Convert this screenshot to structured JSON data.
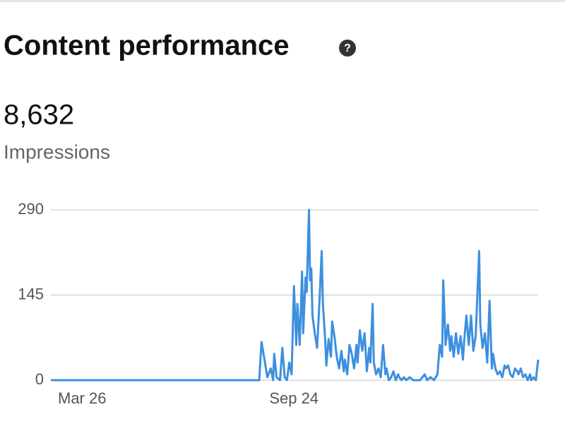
{
  "chart_data": {
    "type": "line",
    "title": "Content performance",
    "total": "8,632",
    "total_label": "Impressions",
    "x": [
      0,
      180,
      182,
      185,
      187,
      190,
      192,
      193,
      195,
      198,
      200,
      202,
      204,
      206,
      208,
      210,
      212,
      213,
      215,
      217,
      218,
      220,
      221,
      223,
      224,
      225,
      226,
      228,
      230,
      232,
      234,
      235,
      237,
      238,
      240,
      242,
      243,
      245,
      247,
      249,
      251,
      253,
      254,
      256,
      258,
      260,
      262,
      264,
      265,
      267,
      269,
      271,
      273,
      275,
      276,
      278,
      279,
      281,
      283,
      285,
      287,
      289,
      290,
      292,
      294,
      296,
      298,
      300,
      301,
      303,
      305,
      307,
      310,
      313,
      316,
      319,
      323,
      325,
      328,
      331,
      334,
      336,
      338,
      339,
      341,
      343,
      345,
      346,
      348,
      350,
      352,
      354,
      356,
      357,
      359,
      361,
      363,
      365,
      367,
      368,
      370,
      371,
      373,
      375,
      377,
      379,
      381,
      382,
      384,
      386,
      388,
      390,
      392,
      393,
      395,
      397,
      399,
      401,
      403,
      404,
      406,
      408,
      410,
      412,
      414,
      415,
      417,
      419,
      421
    ],
    "values": [
      0,
      0,
      65,
      30,
      5,
      20,
      0,
      45,
      5,
      0,
      55,
      5,
      0,
      30,
      10,
      160,
      60,
      130,
      60,
      185,
      80,
      175,
      150,
      290,
      170,
      190,
      110,
      80,
      55,
      130,
      220,
      130,
      70,
      25,
      70,
      40,
      100,
      75,
      40,
      20,
      50,
      15,
      35,
      10,
      60,
      45,
      20,
      60,
      30,
      85,
      50,
      80,
      15,
      55,
      30,
      130,
      30,
      10,
      20,
      5,
      60,
      10,
      20,
      0,
      5,
      15,
      0,
      10,
      5,
      0,
      5,
      0,
      5,
      0,
      0,
      0,
      10,
      0,
      5,
      0,
      10,
      60,
      40,
      170,
      60,
      95,
      50,
      75,
      40,
      80,
      45,
      75,
      35,
      65,
      110,
      60,
      110,
      50,
      75,
      120,
      220,
      95,
      55,
      80,
      30,
      135,
      20,
      45,
      20,
      10,
      15,
      5,
      25,
      20,
      25,
      10,
      5,
      20,
      15,
      10,
      20,
      5,
      10,
      0,
      10,
      0,
      5,
      0,
      35
    ],
    "color": "#3d8fe0",
    "xlim": [
      0,
      421
    ],
    "xticks": [
      {
        "value": 27,
        "label": "Mar 26"
      },
      {
        "value": 210,
        "label": "Sep 24"
      }
    ],
    "ylim": [
      0,
      290
    ],
    "yticks": [
      0,
      145,
      290
    ],
    "grid": true
  }
}
